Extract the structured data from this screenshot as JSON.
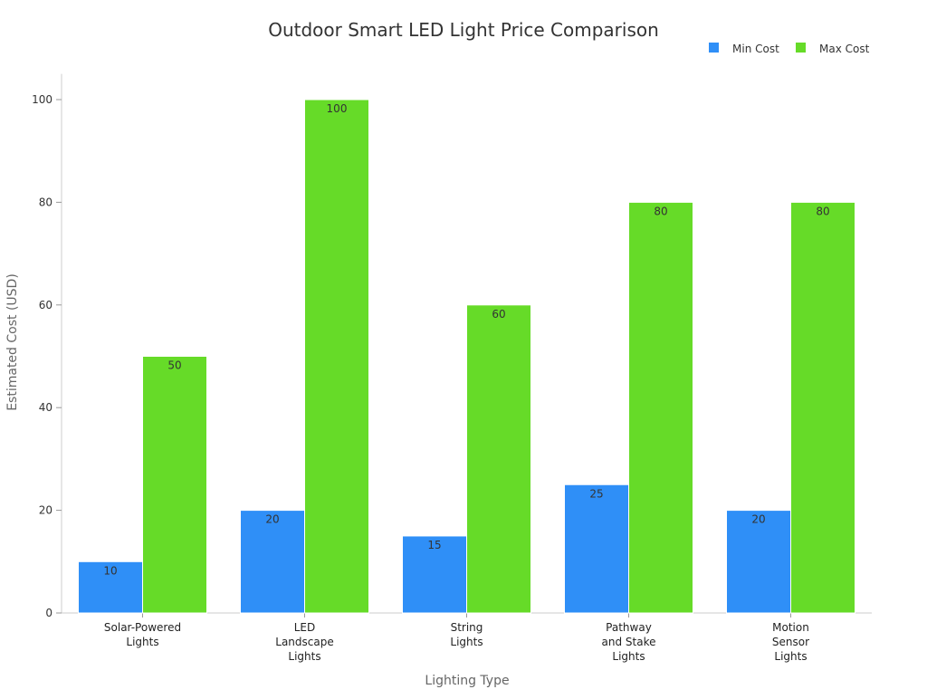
{
  "chart_data": {
    "type": "bar",
    "title": "Outdoor Smart LED Light Price Comparison",
    "xlabel": "Lighting Type",
    "ylabel": "Estimated Cost (USD)",
    "ylim": [
      0,
      105
    ],
    "yticks": [
      0,
      20,
      40,
      60,
      80,
      100
    ],
    "grid": false,
    "legend_position": "top-right",
    "categories": [
      [
        "Solar-Powered",
        "Lights"
      ],
      [
        "LED",
        "Landscape",
        "Lights"
      ],
      [
        "String",
        "Lights"
      ],
      [
        "Pathway",
        "and Stake",
        "Lights"
      ],
      [
        "Motion",
        "Sensor",
        "Lights"
      ]
    ],
    "series": [
      {
        "name": "Min Cost",
        "color": "#2F8FF7",
        "values": [
          10,
          20,
          15,
          25,
          20
        ]
      },
      {
        "name": "Max Cost",
        "color": "#66DB28",
        "values": [
          50,
          100,
          60,
          80,
          80
        ]
      }
    ]
  }
}
